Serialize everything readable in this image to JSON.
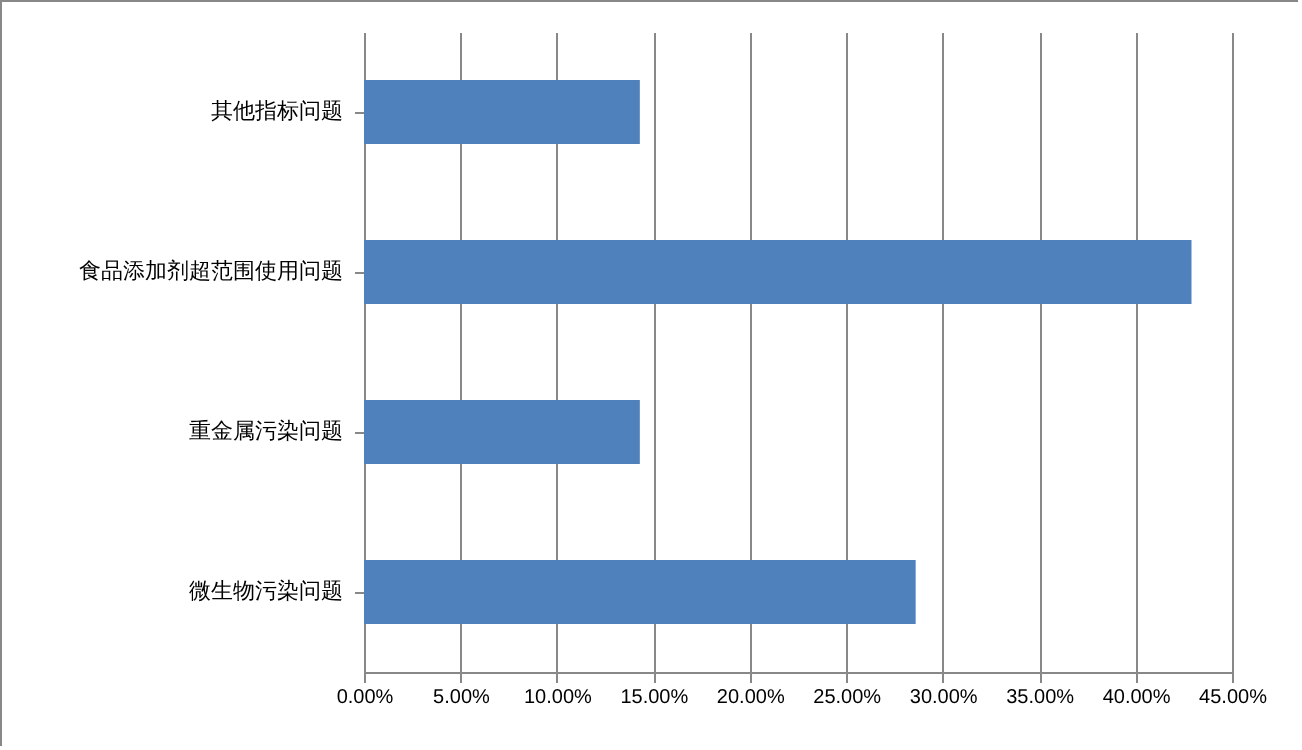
{
  "chart_data": {
    "type": "bar",
    "orientation": "horizontal",
    "categories": [
      "其他指标问题",
      "食品添加剂超范围使用问题",
      "重金属污染问题",
      "微生物污染问题"
    ],
    "values": [
      14.3,
      42.9,
      14.3,
      28.6
    ],
    "color": "#4f81bd",
    "xlim": [
      0,
      45
    ],
    "xticks": [
      {
        "value": 0,
        "label": "0.00%"
      },
      {
        "value": 5,
        "label": "5.00%"
      },
      {
        "value": 10,
        "label": "10.00%"
      },
      {
        "value": 15,
        "label": "15.00%"
      },
      {
        "value": 20,
        "label": "20.00%"
      },
      {
        "value": 25,
        "label": "25.00%"
      },
      {
        "value": 30,
        "label": "30.00%"
      },
      {
        "value": 35,
        "label": "35.00%"
      },
      {
        "value": 40,
        "label": "40.00%"
      },
      {
        "value": 45,
        "label": "45.00%"
      }
    ],
    "grid": "x"
  }
}
